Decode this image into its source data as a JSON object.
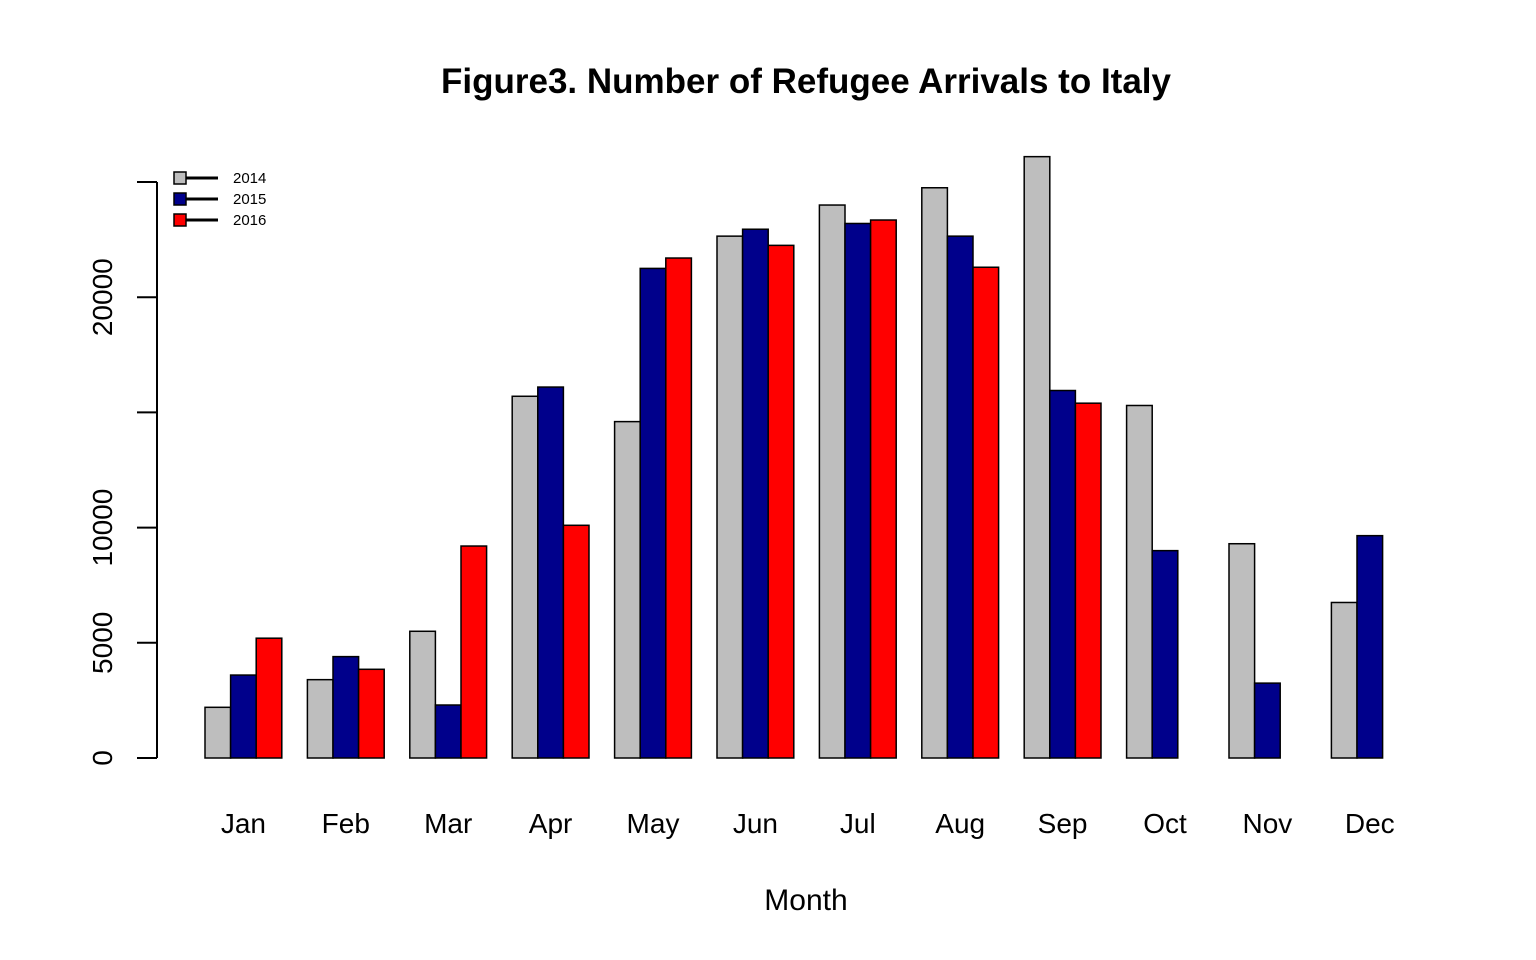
{
  "chart_data": {
    "type": "bar",
    "title": "Figure3. Number of Refugee Arrivals to Italy",
    "xlabel": "Month",
    "ylabel": "",
    "categories": [
      "Jan",
      "Feb",
      "Mar",
      "Apr",
      "May",
      "Jun",
      "Jul",
      "Aug",
      "Sep",
      "Oct",
      "Nov",
      "Dec"
    ],
    "series": [
      {
        "name": "2014",
        "color": "#BEBEBE",
        "values": [
          2200,
          3400,
          5500,
          15700,
          14600,
          22650,
          24000,
          24750,
          26100,
          15300,
          9300,
          6750
        ]
      },
      {
        "name": "2015",
        "color": "#00008B",
        "values": [
          3600,
          4400,
          2300,
          16100,
          21250,
          22950,
          23200,
          22650,
          15950,
          9000,
          3250,
          9650
        ]
      },
      {
        "name": "2016",
        "color": "#FF0000",
        "values": [
          5200,
          3850,
          9200,
          10100,
          21700,
          22250,
          23350,
          21300,
          15400,
          null,
          null,
          null
        ]
      }
    ],
    "yticks": [
      0,
      5000,
      10000,
      15000,
      20000,
      25000
    ],
    "ytick_labels": [
      "0",
      "5000",
      "10000",
      "",
      "20000",
      ""
    ],
    "ylim": [
      0,
      27000
    ],
    "grid": false,
    "legend": {
      "position": "top-left"
    }
  }
}
